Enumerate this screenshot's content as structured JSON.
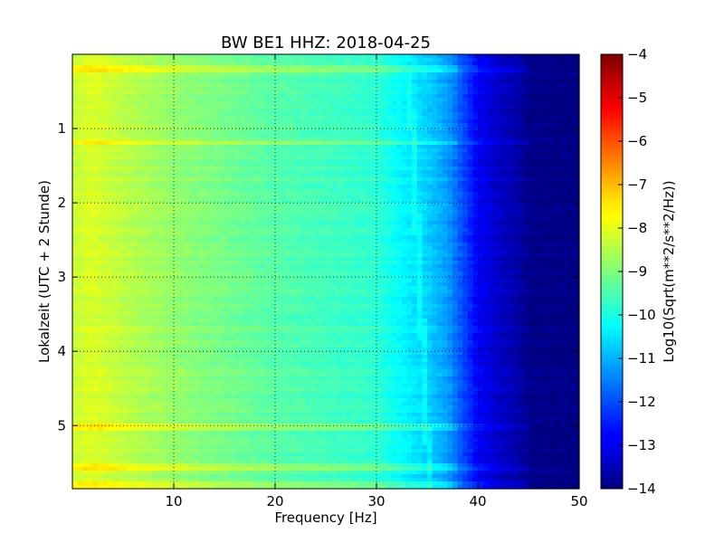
{
  "chart_data": [
    {
      "type": "heatmap",
      "title": "BW BE1 HHZ: 2018-04-25",
      "xlabel": "Frequency [Hz]",
      "ylabel": "Lokalzeit (UTC + 2 Stunde)",
      "xlim": [
        0,
        50
      ],
      "ylim": [
        5.85,
        0
      ],
      "xticks": [
        10,
        20,
        30,
        40,
        50
      ],
      "xtick_labels": [
        "10",
        "20",
        "30",
        "40",
        "50"
      ],
      "yticks": [
        1,
        2,
        3,
        4,
        5
      ],
      "ytick_labels": [
        "1",
        "2",
        "3",
        "4",
        "5"
      ],
      "grid": true,
      "colormap": "jet",
      "profile_freq_hz": [
        0,
        2,
        5,
        10,
        15,
        20,
        25,
        30,
        32,
        35,
        37,
        38.5,
        40,
        42,
        44,
        45,
        50
      ],
      "profile_log10_value": [
        -8.3,
        -8.1,
        -8.4,
        -8.8,
        -9.1,
        -9.4,
        -9.6,
        -9.8,
        -10.2,
        -10.7,
        -11.2,
        -12.0,
        -12.8,
        -13.3,
        -13.6,
        -13.9,
        -14.0
      ],
      "bright_bands_hours": [
        0.2,
        1.2,
        5.02,
        5.55,
        5.8
      ],
      "colorbar": {
        "label": "Log10(Sqrt(m**2/s**2/Hz))",
        "range": [
          -14,
          -4
        ],
        "ticks": [
          -4,
          -5,
          -6,
          -7,
          -8,
          -9,
          -10,
          -11,
          -12,
          -13,
          -14
        ],
        "tick_labels": [
          "−4",
          "−5",
          "−6",
          "−7",
          "−8",
          "−9",
          "−10",
          "−11",
          "−12",
          "−13",
          "−14"
        ]
      }
    }
  ]
}
